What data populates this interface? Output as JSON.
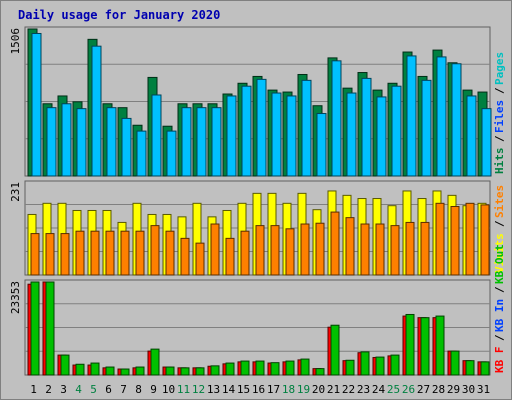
{
  "chart_data": {
    "type": "bar",
    "title": "Daily usage for January 2020",
    "categories": [
      "1",
      "2",
      "3",
      "4",
      "5",
      "6",
      "7",
      "8",
      "9",
      "10",
      "11",
      "12",
      "13",
      "14",
      "15",
      "16",
      "17",
      "18",
      "19",
      "20",
      "21",
      "22",
      "23",
      "24",
      "25",
      "26",
      "27",
      "28",
      "29",
      "30",
      "31"
    ],
    "weekend_days": [
      "4",
      "5",
      "11",
      "12",
      "18",
      "19",
      "25",
      "26"
    ],
    "panels": [
      {
        "max_label": "1506",
        "ymax": 1506,
        "series": [
          {
            "name": "Hits",
            "color": "#008040",
            "values": [
              1506,
              740,
              820,
              760,
              1400,
              740,
              700,
              520,
              1010,
              510,
              740,
              740,
              740,
              840,
              950,
              1020,
              880,
              860,
              1040,
              720,
              1210,
              900,
              1060,
              880,
              950,
              1270,
              1020,
              1290,
              1160,
              880,
              860
            ]
          },
          {
            "name": "Files",
            "color": "#00c0ff",
            "values": [
              1460,
              700,
              740,
              690,
              1330,
              700,
              590,
              460,
              830,
              460,
              700,
              700,
              700,
              820,
              920,
              990,
              850,
              820,
              980,
              640,
              1180,
              850,
              1000,
              810,
              920,
              1230,
              980,
              1220,
              1150,
              820,
              690
            ]
          },
          {
            "name": "Pages",
            "color": "#00c0ff",
            "values": [
              0,
              0,
              0,
              0,
              0,
              0,
              0,
              0,
              0,
              0,
              0,
              0,
              0,
              0,
              0,
              0,
              0,
              0,
              0,
              0,
              0,
              0,
              0,
              0,
              0,
              0,
              0,
              0,
              0,
              0,
              0
            ]
          }
        ],
        "labels": [
          {
            "text": "Hits",
            "color": "#008040"
          },
          {
            "text": "Files",
            "color": "#0040ff"
          },
          {
            "text": "Pages",
            "color": "#00c0c0"
          }
        ]
      },
      {
        "max_label": "231",
        "ymax": 231,
        "series": [
          {
            "name": "Visits",
            "color": "#ffff00",
            "values": [
              152,
              180,
              180,
              162,
              162,
              162,
              132,
              180,
              152,
              152,
              146,
              180,
              146,
              162,
              180,
              205,
              205,
              180,
              205,
              164,
              211,
              200,
              192,
              192,
              174,
              211,
              192,
              211,
              200,
              174,
              180
            ]
          },
          {
            "name": "Sites",
            "color": "#ff8000",
            "values": [
              104,
              104,
              104,
              110,
              110,
              110,
              110,
              110,
              124,
              110,
              92,
              80,
              128,
              92,
              110,
              124,
              124,
              116,
              128,
              130,
              158,
              144,
              128,
              128,
              124,
              132,
              132,
              180,
              172,
              180,
              176
            ]
          }
        ],
        "labels": [
          {
            "text": "Visits",
            "color": "#ffff00"
          },
          {
            "text": "Sites",
            "color": "#ff8000"
          }
        ]
      },
      {
        "max_label": "23353",
        "ymax": 23353,
        "series": [
          {
            "name": "KB F",
            "color": "#ff0000",
            "values": [
              22800,
              23353,
              5000,
              2500,
              2500,
              1800,
              1500,
              1800,
              6000,
              2000,
              1800,
              1800,
              2200,
              2800,
              3300,
              3300,
              3000,
              3300,
              3800,
              1600,
              12000,
              3600,
              5600,
              4400,
              4800,
              14800,
              14400,
              14400,
              6000,
              3600,
              3300
            ]
          },
          {
            "name": "KB In",
            "color": "#0040ff",
            "values": [
              0,
              0,
              0,
              0,
              0,
              0,
              0,
              0,
              0,
              0,
              0,
              0,
              0,
              0,
              0,
              0,
              0,
              0,
              0,
              0,
              0,
              0,
              0,
              0,
              0,
              0,
              0,
              0,
              0,
              0,
              0
            ]
          },
          {
            "name": "KB Out",
            "color": "#00c000",
            "values": [
              23353,
              23353,
              5000,
              2700,
              3000,
              2000,
              1500,
              2000,
              6500,
              2000,
              1800,
              1800,
              2300,
              3000,
              3500,
              3500,
              3100,
              3500,
              4000,
              1600,
              12500,
              3700,
              5800,
              4500,
              5000,
              15200,
              14400,
              14800,
              6000,
              3600,
              3300
            ]
          }
        ],
        "labels": [
          {
            "text": "KB F",
            "color": "#ff0000"
          },
          {
            "text": "KB In",
            "color": "#0040ff"
          },
          {
            "text": "KB Out",
            "color": "#00c000"
          }
        ]
      }
    ],
    "grid": true
  }
}
